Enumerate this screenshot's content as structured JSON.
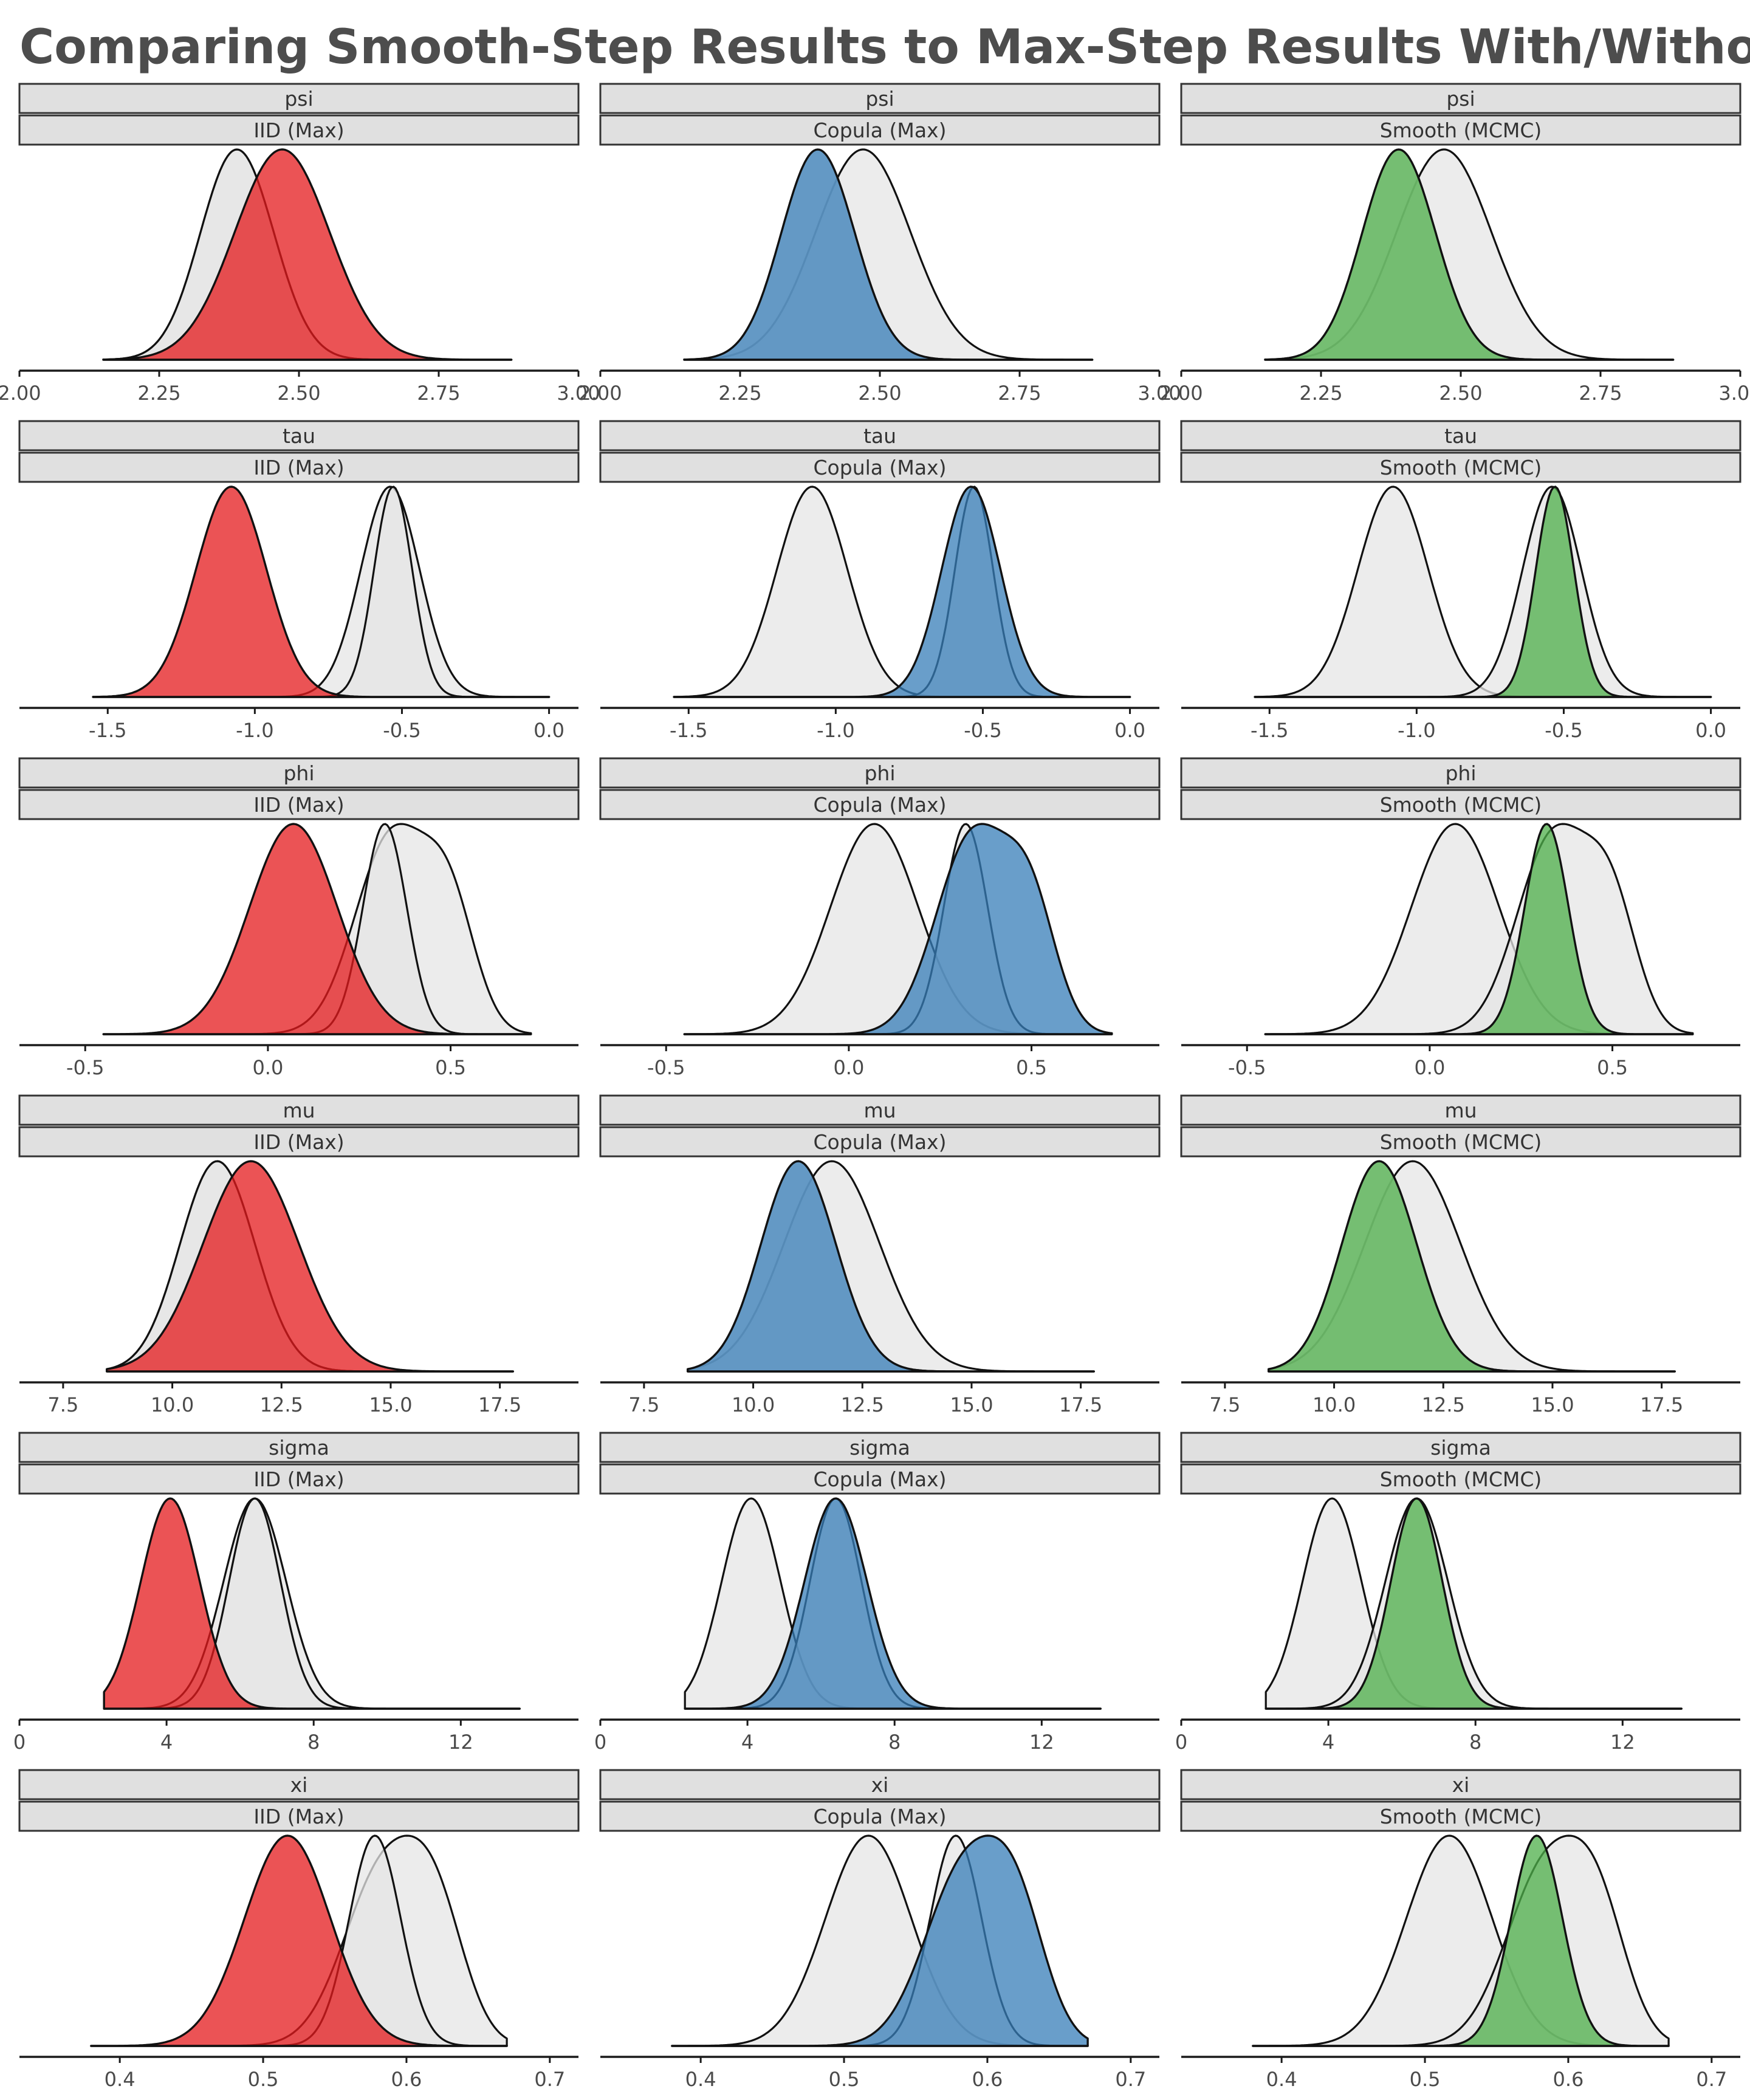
{
  "title": "Comparing Smooth-Step Results to Max-Step Results With/Without Copula",
  "colors": {
    "iid": "#e41a1c",
    "copula": "#377eb8",
    "smooth": "#4daf4a",
    "reference_fill": "#e5e5e5",
    "strip_fill": "#e0e0e0"
  },
  "chart_data": {
    "type": "area",
    "kind": "faceted density plot",
    "columns": [
      "IID (Max)",
      "Copula (Max)",
      "Smooth (MCMC)"
    ],
    "column_colors": [
      "iid",
      "copula",
      "smooth"
    ],
    "grid": false,
    "legend": "none",
    "rows": [
      {
        "parameter": "psi",
        "xlim": [
          2.0,
          3.0
        ],
        "ticks": [
          2.0,
          2.25,
          2.5,
          2.75,
          3.0
        ],
        "tick_labels": [
          "2.00",
          "2.25",
          "2.50",
          "2.75",
          "3.00"
        ],
        "range": [
          2.15,
          2.88
        ],
        "densities": {
          "iid": [
            [
              2.47,
              0.085,
              1.0,
              1.0
            ]
          ],
          "copula": [
            [
              2.37,
              0.06,
              0.75,
              1.0
            ],
            [
              2.42,
              0.06,
              0.5,
              1.0
            ]
          ],
          "smooth": [
            [
              2.37,
              0.06,
              0.75,
              1.0
            ],
            [
              2.42,
              0.06,
              0.5,
              1.0
            ]
          ]
        }
      },
      {
        "parameter": "tau",
        "xlim": [
          -1.8,
          0.1
        ],
        "ticks": [
          -1.5,
          -1.0,
          -0.5,
          0.0
        ],
        "tick_labels": [
          "-1.5",
          "-1.0",
          "-0.5",
          "0.0"
        ],
        "range": [
          -1.55,
          0.0
        ],
        "densities": {
          "iid": [
            [
              -1.08,
              0.12,
              1.0,
              1.0
            ]
          ],
          "copula": [
            [
              -0.54,
              0.1,
              1.0,
              1.0
            ]
          ],
          "smooth": [
            [
              -0.53,
              0.065,
              1.0,
              1.0
            ]
          ]
        }
      },
      {
        "parameter": "phi",
        "xlim": [
          -0.68,
          0.85
        ],
        "ticks": [
          -0.5,
          0.0,
          0.5
        ],
        "tick_labels": [
          "-0.5",
          "0.0",
          "0.5"
        ],
        "range": [
          -0.45,
          0.72
        ],
        "densities": {
          "iid": [
            [
              0.07,
              0.12,
              1.0,
              1.0
            ]
          ],
          "copula": [
            [
              0.34,
              0.1,
              0.8,
              1.0
            ],
            [
              0.5,
              0.07,
              0.45,
              1.0
            ]
          ],
          "smooth": [
            [
              0.32,
              0.06,
              1.0,
              1.0
            ]
          ]
        }
      },
      {
        "parameter": "mu",
        "xlim": [
          6.5,
          19.3
        ],
        "ticks": [
          7.5,
          10.0,
          12.5,
          15.0,
          17.5
        ],
        "tick_labels": [
          "7.5",
          "10.0",
          "12.5",
          "15.0",
          "17.5"
        ],
        "range": [
          8.5,
          17.8
        ],
        "densities": {
          "iid": [
            [
              11.8,
              1.1,
              1.0,
              1.0
            ]
          ],
          "copula": [
            [
              10.8,
              0.8,
              0.75,
              1.0
            ],
            [
              11.4,
              0.8,
              0.5,
              1.0
            ]
          ],
          "smooth": [
            [
              10.8,
              0.8,
              0.75,
              1.0
            ],
            [
              11.4,
              0.8,
              0.5,
              1.0
            ]
          ]
        }
      },
      {
        "parameter": "sigma",
        "xlim": [
          0.0,
          15.2
        ],
        "ticks": [
          0,
          4,
          8,
          12
        ],
        "tick_labels": [
          "0",
          "4",
          "8",
          "12"
        ],
        "range": [
          2.3,
          13.6
        ],
        "densities": {
          "iid": [
            [
              4.1,
              0.8,
              1.0,
              1.0
            ]
          ],
          "copula": [
            [
              6.4,
              0.85,
              1.0,
              1.0
            ]
          ],
          "smooth": [
            [
              6.4,
              0.7,
              1.0,
              1.0
            ]
          ]
        }
      },
      {
        "parameter": "xi",
        "xlim": [
          0.33,
          0.72
        ],
        "ticks": [
          0.4,
          0.5,
          0.6,
          0.7
        ],
        "tick_labels": [
          "0.4",
          "0.5",
          "0.6",
          "0.7"
        ],
        "range": [
          0.38,
          0.67
        ],
        "densities": {
          "iid": [
            [
              0.517,
              0.03,
              1.0,
              1.0
            ]
          ],
          "copula": [
            [
              0.585,
              0.028,
              0.8,
              1.0
            ],
            [
              0.622,
              0.02,
              0.45,
              1.0
            ]
          ],
          "smooth": [
            [
              0.578,
              0.018,
              1.0,
              1.0
            ]
          ]
        }
      }
    ]
  }
}
